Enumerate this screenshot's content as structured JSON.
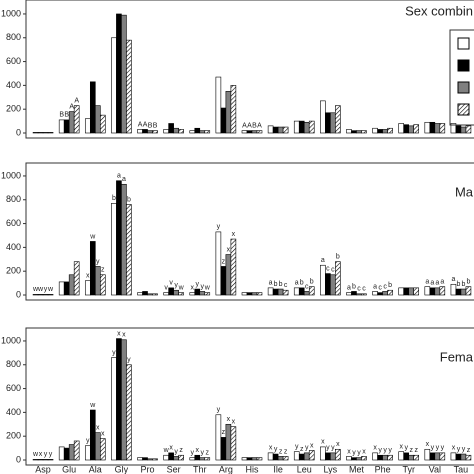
{
  "chart_data": [
    {
      "type": "bar",
      "title": "Sex combin",
      "ylim": [
        0,
        1050
      ],
      "yticks": [
        0,
        200,
        400,
        600,
        800,
        1000
      ],
      "series": [
        {
          "color": "#ffffff",
          "values": [
            5,
            110,
            120,
            800,
            30,
            30,
            20,
            470,
            20,
            60,
            100,
            270,
            30,
            40,
            80,
            90,
            80
          ],
          "letters": [
            null,
            "B",
            null,
            null,
            "A",
            null,
            null,
            null,
            "A",
            null,
            null,
            null,
            null,
            null,
            null,
            null,
            null
          ]
        },
        {
          "color": "#000000",
          "values": [
            5,
            110,
            430,
            1000,
            30,
            80,
            40,
            210,
            20,
            50,
            100,
            170,
            20,
            30,
            70,
            90,
            60
          ],
          "letters": [
            null,
            "B",
            null,
            null,
            "A",
            null,
            null,
            null,
            "A",
            null,
            null,
            null,
            null,
            null,
            null,
            null,
            null
          ]
        },
        {
          "color": "#808080",
          "values": [
            5,
            180,
            230,
            990,
            20,
            40,
            20,
            350,
            20,
            50,
            90,
            170,
            20,
            30,
            60,
            80,
            50
          ],
          "letters": [
            null,
            "A",
            null,
            null,
            "B",
            null,
            null,
            null,
            "B",
            null,
            null,
            null,
            null,
            null,
            null,
            null,
            null
          ]
        },
        {
          "color": "#ffffff",
          "hatch": true,
          "values": [
            5,
            230,
            150,
            780,
            20,
            30,
            20,
            400,
            20,
            50,
            100,
            230,
            20,
            40,
            70,
            80,
            60
          ],
          "letters": [
            null,
            "A",
            null,
            null,
            "B",
            null,
            null,
            null,
            "A",
            null,
            null,
            null,
            null,
            null,
            null,
            null,
            null
          ]
        }
      ]
    },
    {
      "type": "bar",
      "title": "Ma",
      "ylim": [
        0,
        1050
      ],
      "yticks": [
        0,
        200,
        400,
        600,
        800,
        1000
      ],
      "series": [
        {
          "color": "#ffffff",
          "values": [
            5,
            110,
            120,
            770,
            20,
            20,
            20,
            530,
            20,
            60,
            60,
            250,
            20,
            30,
            60,
            70,
            90
          ],
          "letters": [
            "w",
            null,
            "x",
            "b",
            null,
            "v",
            "x",
            "y",
            null,
            "a",
            "a",
            "a",
            "a",
            "a",
            null,
            "a",
            "a"
          ]
        },
        {
          "color": "#000000",
          "values": [
            5,
            110,
            450,
            960,
            30,
            60,
            50,
            240,
            20,
            50,
            60,
            180,
            30,
            20,
            60,
            60,
            50
          ],
          "letters": [
            "w",
            null,
            "w",
            "a",
            null,
            "v",
            "y",
            "z",
            null,
            "b",
            "b",
            "c",
            "b",
            "c",
            null,
            "a",
            "b"
          ]
        },
        {
          "color": "#808080",
          "values": [
            5,
            170,
            240,
            930,
            10,
            40,
            30,
            340,
            20,
            50,
            30,
            170,
            10,
            30,
            60,
            60,
            50
          ],
          "letters": [
            "y",
            null,
            "y",
            "a",
            null,
            "y",
            "y",
            "x",
            null,
            "b",
            "c",
            "c",
            "c",
            "c",
            null,
            "a",
            "b"
          ]
        },
        {
          "color": "#ffffff",
          "hatch": true,
          "values": [
            5,
            280,
            170,
            760,
            10,
            20,
            20,
            470,
            20,
            40,
            70,
            280,
            10,
            40,
            60,
            70,
            70
          ],
          "letters": [
            "w",
            null,
            "z",
            "b",
            null,
            "w",
            "w",
            "x",
            null,
            "c",
            "b",
            "b",
            "c",
            "b",
            null,
            "a",
            "b"
          ]
        }
      ]
    },
    {
      "type": "bar",
      "title": "Fema",
      "ylim": [
        0,
        1050
      ],
      "yticks": [
        0,
        200,
        400,
        600,
        800,
        1000
      ],
      "categories": [
        "Asp",
        "Glu",
        "Ala",
        "Gly",
        "Pro",
        "Ser",
        "Thr",
        "Arg",
        "His",
        "Ile",
        "Leu",
        "Lys",
        "Met",
        "Phe",
        "Tyr",
        "Val",
        "Tau"
      ],
      "series": [
        {
          "color": "#ffffff",
          "values": [
            5,
            110,
            120,
            860,
            20,
            40,
            20,
            380,
            20,
            60,
            70,
            110,
            30,
            60,
            70,
            90,
            60
          ],
          "letters": [
            "w",
            null,
            "y",
            "y",
            null,
            "w",
            "y",
            "y",
            null,
            "x",
            "y",
            "x",
            "x",
            "x",
            "x",
            "x",
            "x"
          ]
        },
        {
          "color": "#000000",
          "values": [
            5,
            100,
            420,
            1020,
            20,
            60,
            40,
            190,
            20,
            50,
            50,
            60,
            20,
            40,
            60,
            60,
            50
          ],
          "letters": [
            "x",
            null,
            "w",
            "x",
            null,
            "x",
            "x",
            "z",
            null,
            "y",
            "z",
            "y",
            "y",
            "y",
            "y",
            "y",
            "y"
          ]
        },
        {
          "color": "#808080",
          "values": [
            5,
            130,
            230,
            1010,
            10,
            30,
            20,
            300,
            20,
            30,
            60,
            60,
            20,
            40,
            40,
            60,
            50
          ],
          "letters": [
            "y",
            null,
            "x",
            "x",
            null,
            "y",
            "y",
            "x",
            null,
            "z",
            "y",
            "y",
            "y",
            "y",
            "z",
            "y",
            "y"
          ]
        },
        {
          "color": "#ffffff",
          "hatch": true,
          "values": [
            5,
            160,
            180,
            800,
            10,
            40,
            20,
            280,
            20,
            30,
            80,
            90,
            30,
            40,
            40,
            60,
            40
          ],
          "letters": [
            "y",
            null,
            "x",
            "y",
            null,
            "z",
            "z",
            "x",
            null,
            "z",
            "x",
            "x",
            "x",
            "y",
            "z",
            "y",
            "z"
          ]
        }
      ]
    }
  ]
}
